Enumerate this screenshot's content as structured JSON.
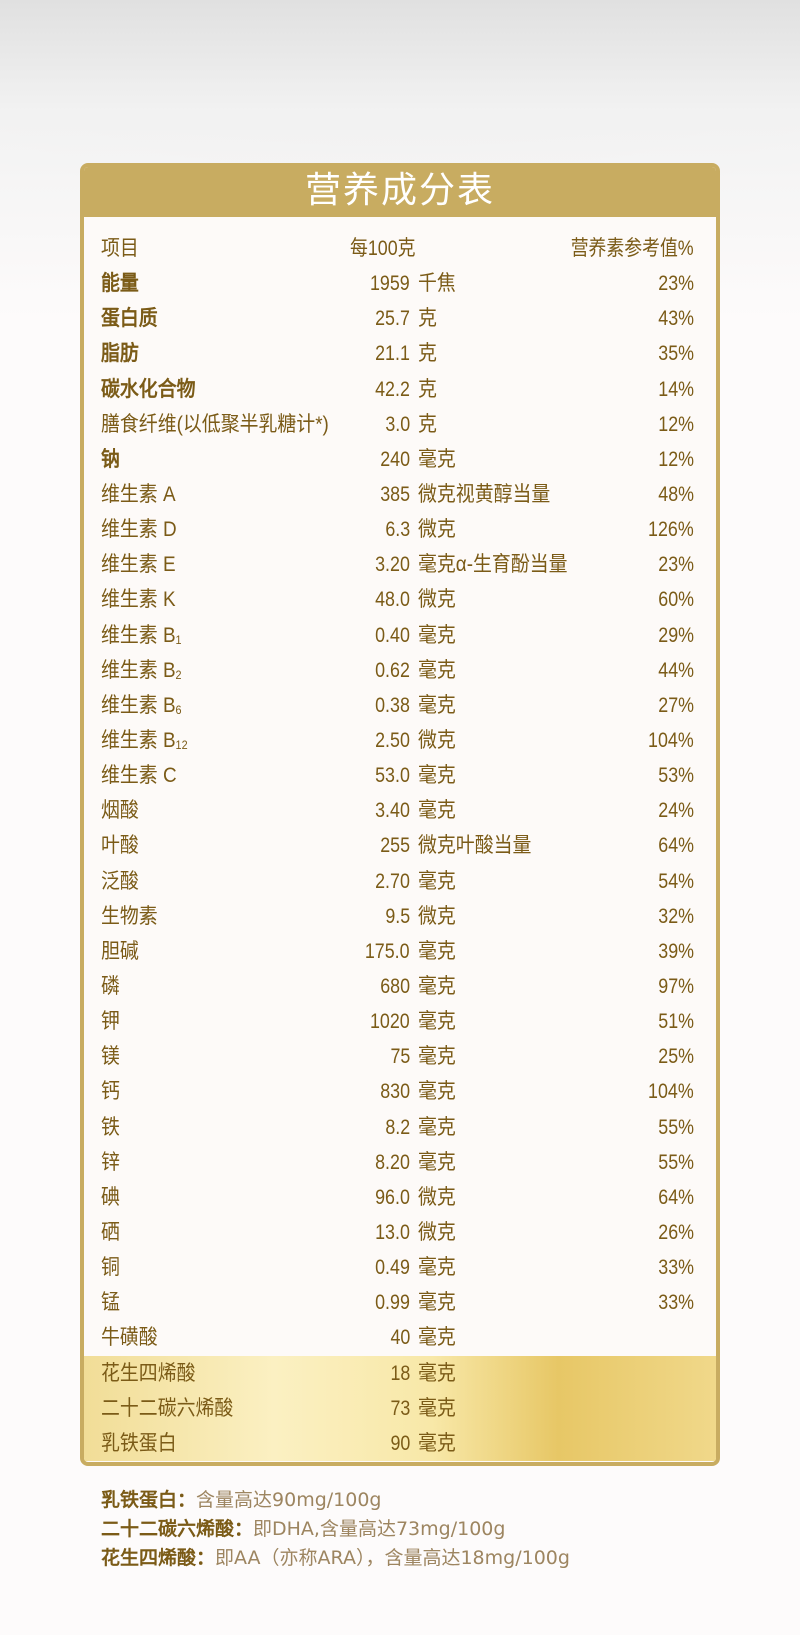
{
  "title": "营养成分表",
  "header": {
    "item": "项目",
    "per100": "每100克",
    "nrv": "营养素参考值%"
  },
  "rows": [
    {
      "name": "能量",
      "amount": "1959",
      "unit": "千焦",
      "nrv": "23%",
      "bold": true
    },
    {
      "name": "蛋白质",
      "amount": "25.7",
      "unit": "克",
      "nrv": "43%",
      "bold": true
    },
    {
      "name": "脂肪",
      "amount": "21.1",
      "unit": "克",
      "nrv": "35%",
      "bold": true
    },
    {
      "name": "碳水化合物",
      "amount": "42.2",
      "unit": "克",
      "nrv": "14%",
      "bold": true
    },
    {
      "name": "膳食纤维(以低聚半乳糖计*)",
      "amount": "3.0",
      "unit": "克",
      "nrv": "12%"
    },
    {
      "name": "钠",
      "amount": "240",
      "unit": "毫克",
      "nrv": "12%",
      "bold": true
    },
    {
      "name": "维生素 A",
      "amount": "385",
      "unit": "微克视黄醇当量",
      "nrv": "48%"
    },
    {
      "name": "维生素 D",
      "amount": "6.3",
      "unit": "微克",
      "nrv": "126%"
    },
    {
      "name": "维生素 E",
      "amount": "3.20",
      "unit": "毫克α-生育酚当量",
      "nrv": "23%"
    },
    {
      "name": "维生素 K",
      "amount": "48.0",
      "unit": "微克",
      "nrv": "60%"
    },
    {
      "name": "维生素 B",
      "sub": "1",
      "amount": "0.40",
      "unit": "毫克",
      "nrv": "29%"
    },
    {
      "name": "维生素 B",
      "sub": "2",
      "amount": "0.62",
      "unit": "毫克",
      "nrv": "44%"
    },
    {
      "name": "维生素 B",
      "sub": "6",
      "amount": "0.38",
      "unit": "毫克",
      "nrv": "27%"
    },
    {
      "name": "维生素 B",
      "sub": "12",
      "amount": "2.50",
      "unit": "微克",
      "nrv": "104%"
    },
    {
      "name": "维生素 C",
      "amount": "53.0",
      "unit": "毫克",
      "nrv": "53%"
    },
    {
      "name": "烟酸",
      "amount": "3.40",
      "unit": "毫克",
      "nrv": "24%"
    },
    {
      "name": "叶酸",
      "amount": "255",
      "unit": "微克叶酸当量",
      "nrv": "64%"
    },
    {
      "name": "泛酸",
      "amount": "2.70",
      "unit": "毫克",
      "nrv": "54%"
    },
    {
      "name": "生物素",
      "amount": "9.5",
      "unit": "微克",
      "nrv": "32%"
    },
    {
      "name": "胆碱",
      "amount": "175.0",
      "unit": "毫克",
      "nrv": "39%"
    },
    {
      "name": "磷",
      "amount": "680",
      "unit": "毫克",
      "nrv": "97%"
    },
    {
      "name": "钾",
      "amount": "1020",
      "unit": "毫克",
      "nrv": "51%"
    },
    {
      "name": "镁",
      "amount": "75",
      "unit": "毫克",
      "nrv": "25%"
    },
    {
      "name": "钙",
      "amount": "830",
      "unit": "毫克",
      "nrv": "104%"
    },
    {
      "name": "铁",
      "amount": "8.2",
      "unit": "毫克",
      "nrv": "55%"
    },
    {
      "name": "锌",
      "amount": "8.20",
      "unit": "毫克",
      "nrv": "55%"
    },
    {
      "name": "碘",
      "amount": "96.0",
      "unit": "微克",
      "nrv": "64%"
    },
    {
      "name": "硒",
      "amount": "13.0",
      "unit": "微克",
      "nrv": "26%"
    },
    {
      "name": "铜",
      "amount": "0.49",
      "unit": "毫克",
      "nrv": "33%"
    },
    {
      "name": "锰",
      "amount": "0.99",
      "unit": "毫克",
      "nrv": "33%"
    },
    {
      "name": "牛磺酸",
      "amount": "40",
      "unit": "毫克",
      "nrv": ""
    },
    {
      "name": "花生四烯酸",
      "amount": "18",
      "unit": "毫克",
      "nrv": "",
      "highlight": true
    },
    {
      "name": "二十二碳六烯酸",
      "amount": "73",
      "unit": "毫克",
      "nrv": "",
      "highlight": true
    },
    {
      "name": "乳铁蛋白",
      "amount": "90",
      "unit": "毫克",
      "nrv": "",
      "highlight": true
    }
  ],
  "notes": [
    {
      "label": "乳铁蛋白：",
      "text": "含量高达90mg/100g"
    },
    {
      "label": "二十二碳六烯酸：",
      "text": "即DHA,含量高达73mg/100g"
    },
    {
      "label": "花生四烯酸：",
      "text": "即AA（亦称ARA），含量高达18mg/100g"
    }
  ],
  "colors": {
    "gold": "#c8ac61",
    "text": "#7b5b17",
    "note": "#9d8560"
  }
}
